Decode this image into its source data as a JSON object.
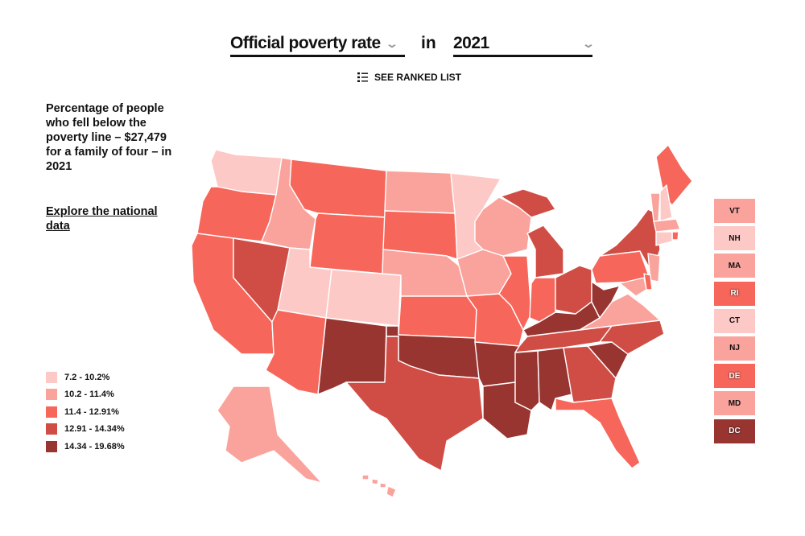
{
  "header": {
    "metric_select": "Official poverty rate",
    "connector": "in",
    "year_select": "2021",
    "ranked_list": "SEE RANKED LIST"
  },
  "description": "Percentage of people who fell below the poverty line – $27,479 for a family of four – in 2021",
  "explore_link": "Explore the national data",
  "legend": [
    {
      "label": "7.2 - 10.2%",
      "color": "#fdc9c6"
    },
    {
      "label": "10.2 - 11.4%",
      "color": "#f9a39c"
    },
    {
      "label": "11.4 - 12.91%",
      "color": "#f6665a"
    },
    {
      "label": "12.91 - 14.34%",
      "color": "#cf4d45"
    },
    {
      "label": "14.34 - 19.68%",
      "color": "#993531"
    }
  ],
  "states": {
    "WA": 0,
    "OR": 2,
    "CA": 2,
    "NV": 3,
    "ID": 1,
    "MT": 2,
    "WY": 2,
    "UT": 0,
    "CO": 0,
    "AZ": 2,
    "NM": 4,
    "ND": 1,
    "SD": 2,
    "NE": 1,
    "KS": 2,
    "OK": 4,
    "TX": 3,
    "MN": 0,
    "IA": 1,
    "MO": 2,
    "AR": 4,
    "LA": 4,
    "WI": 1,
    "IL": 2,
    "MI": 3,
    "IN": 2,
    "OH": 3,
    "KY": 4,
    "TN": 3,
    "MS": 4,
    "AL": 4,
    "GA": 3,
    "FL": 2,
    "SC": 4,
    "NC": 3,
    "VA": 1,
    "WV": 4,
    "PA": 2,
    "NY": 3,
    "ME": 2,
    "VT": 1,
    "NH": 0,
    "MA": 1,
    "RI": 2,
    "CT": 0,
    "NJ": 1,
    "DE": 2,
    "MD": 1,
    "DC": 4,
    "AK": 1,
    "HI": 1
  },
  "small_states": [
    {
      "abbr": "VT",
      "bin": 1
    },
    {
      "abbr": "NH",
      "bin": 0
    },
    {
      "abbr": "MA",
      "bin": 1
    },
    {
      "abbr": "RI",
      "bin": 2
    },
    {
      "abbr": "CT",
      "bin": 0
    },
    {
      "abbr": "NJ",
      "bin": 1
    },
    {
      "abbr": "DE",
      "bin": 2
    },
    {
      "abbr": "MD",
      "bin": 1
    },
    {
      "abbr": "DC",
      "bin": 4
    }
  ]
}
